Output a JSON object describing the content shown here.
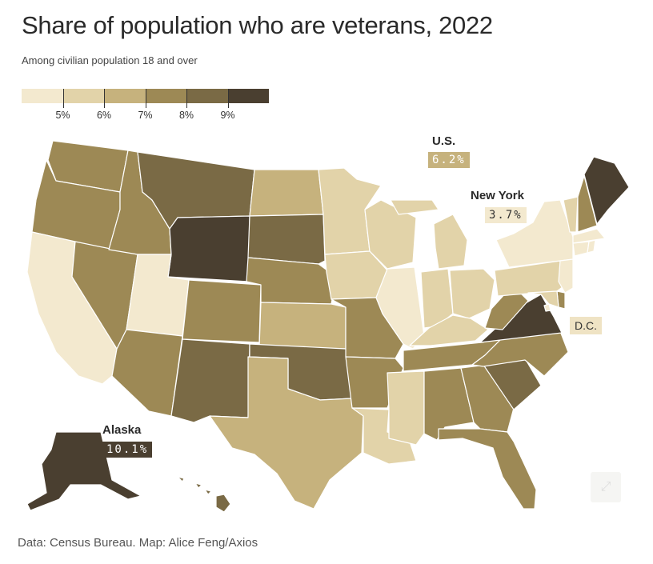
{
  "title": "Share of population who are veterans, 2022",
  "subtitle": "Among civilian population 18 and over",
  "legend": {
    "ticks": [
      "5%",
      "6%",
      "7%",
      "8%",
      "9%"
    ],
    "colors": [
      "#f3e9cf",
      "#e2d3a9",
      "#c6b27d",
      "#9d8955",
      "#7a6a45",
      "#4a3f30"
    ]
  },
  "callouts": {
    "us": {
      "name": "U.S.",
      "value": "6.2%"
    },
    "new_york": {
      "name": "New York",
      "value": "3.7%"
    },
    "alaska": {
      "name": "Alaska",
      "value": "10.1%"
    },
    "dc": {
      "name": "D.C."
    }
  },
  "source": "Data: Census Bureau. Map: Alice Feng/Axios",
  "state_bins": {
    "WA": 3,
    "OR": 3,
    "CA": 0,
    "NV": 3,
    "ID": 3,
    "UT": 0,
    "AZ": 3,
    "MT": 4,
    "WY": 5,
    "CO": 3,
    "NM": 4,
    "ND": 2,
    "SD": 4,
    "NE": 3,
    "KS": 2,
    "OK": 4,
    "TX": 2,
    "MN": 1,
    "IA": 1,
    "MO": 3,
    "AR": 3,
    "LA": 1,
    "WI": 1,
    "IL": 0,
    "MI": 1,
    "IN": 1,
    "OH": 1,
    "KY": 1,
    "TN": 3,
    "MS": 1,
    "AL": 3,
    "GA": 3,
    "FL": 3,
    "SC": 4,
    "NC": 3,
    "VA": 5,
    "WV": 3,
    "PA": 1,
    "NY": 0,
    "VT": 1,
    "NH": 3,
    "ME": 5,
    "MA": 0,
    "RI": 0,
    "CT": 0,
    "NJ": 0,
    "DE": 3,
    "MD": 1,
    "DC": 0,
    "AK": 5,
    "HI": 4
  }
}
